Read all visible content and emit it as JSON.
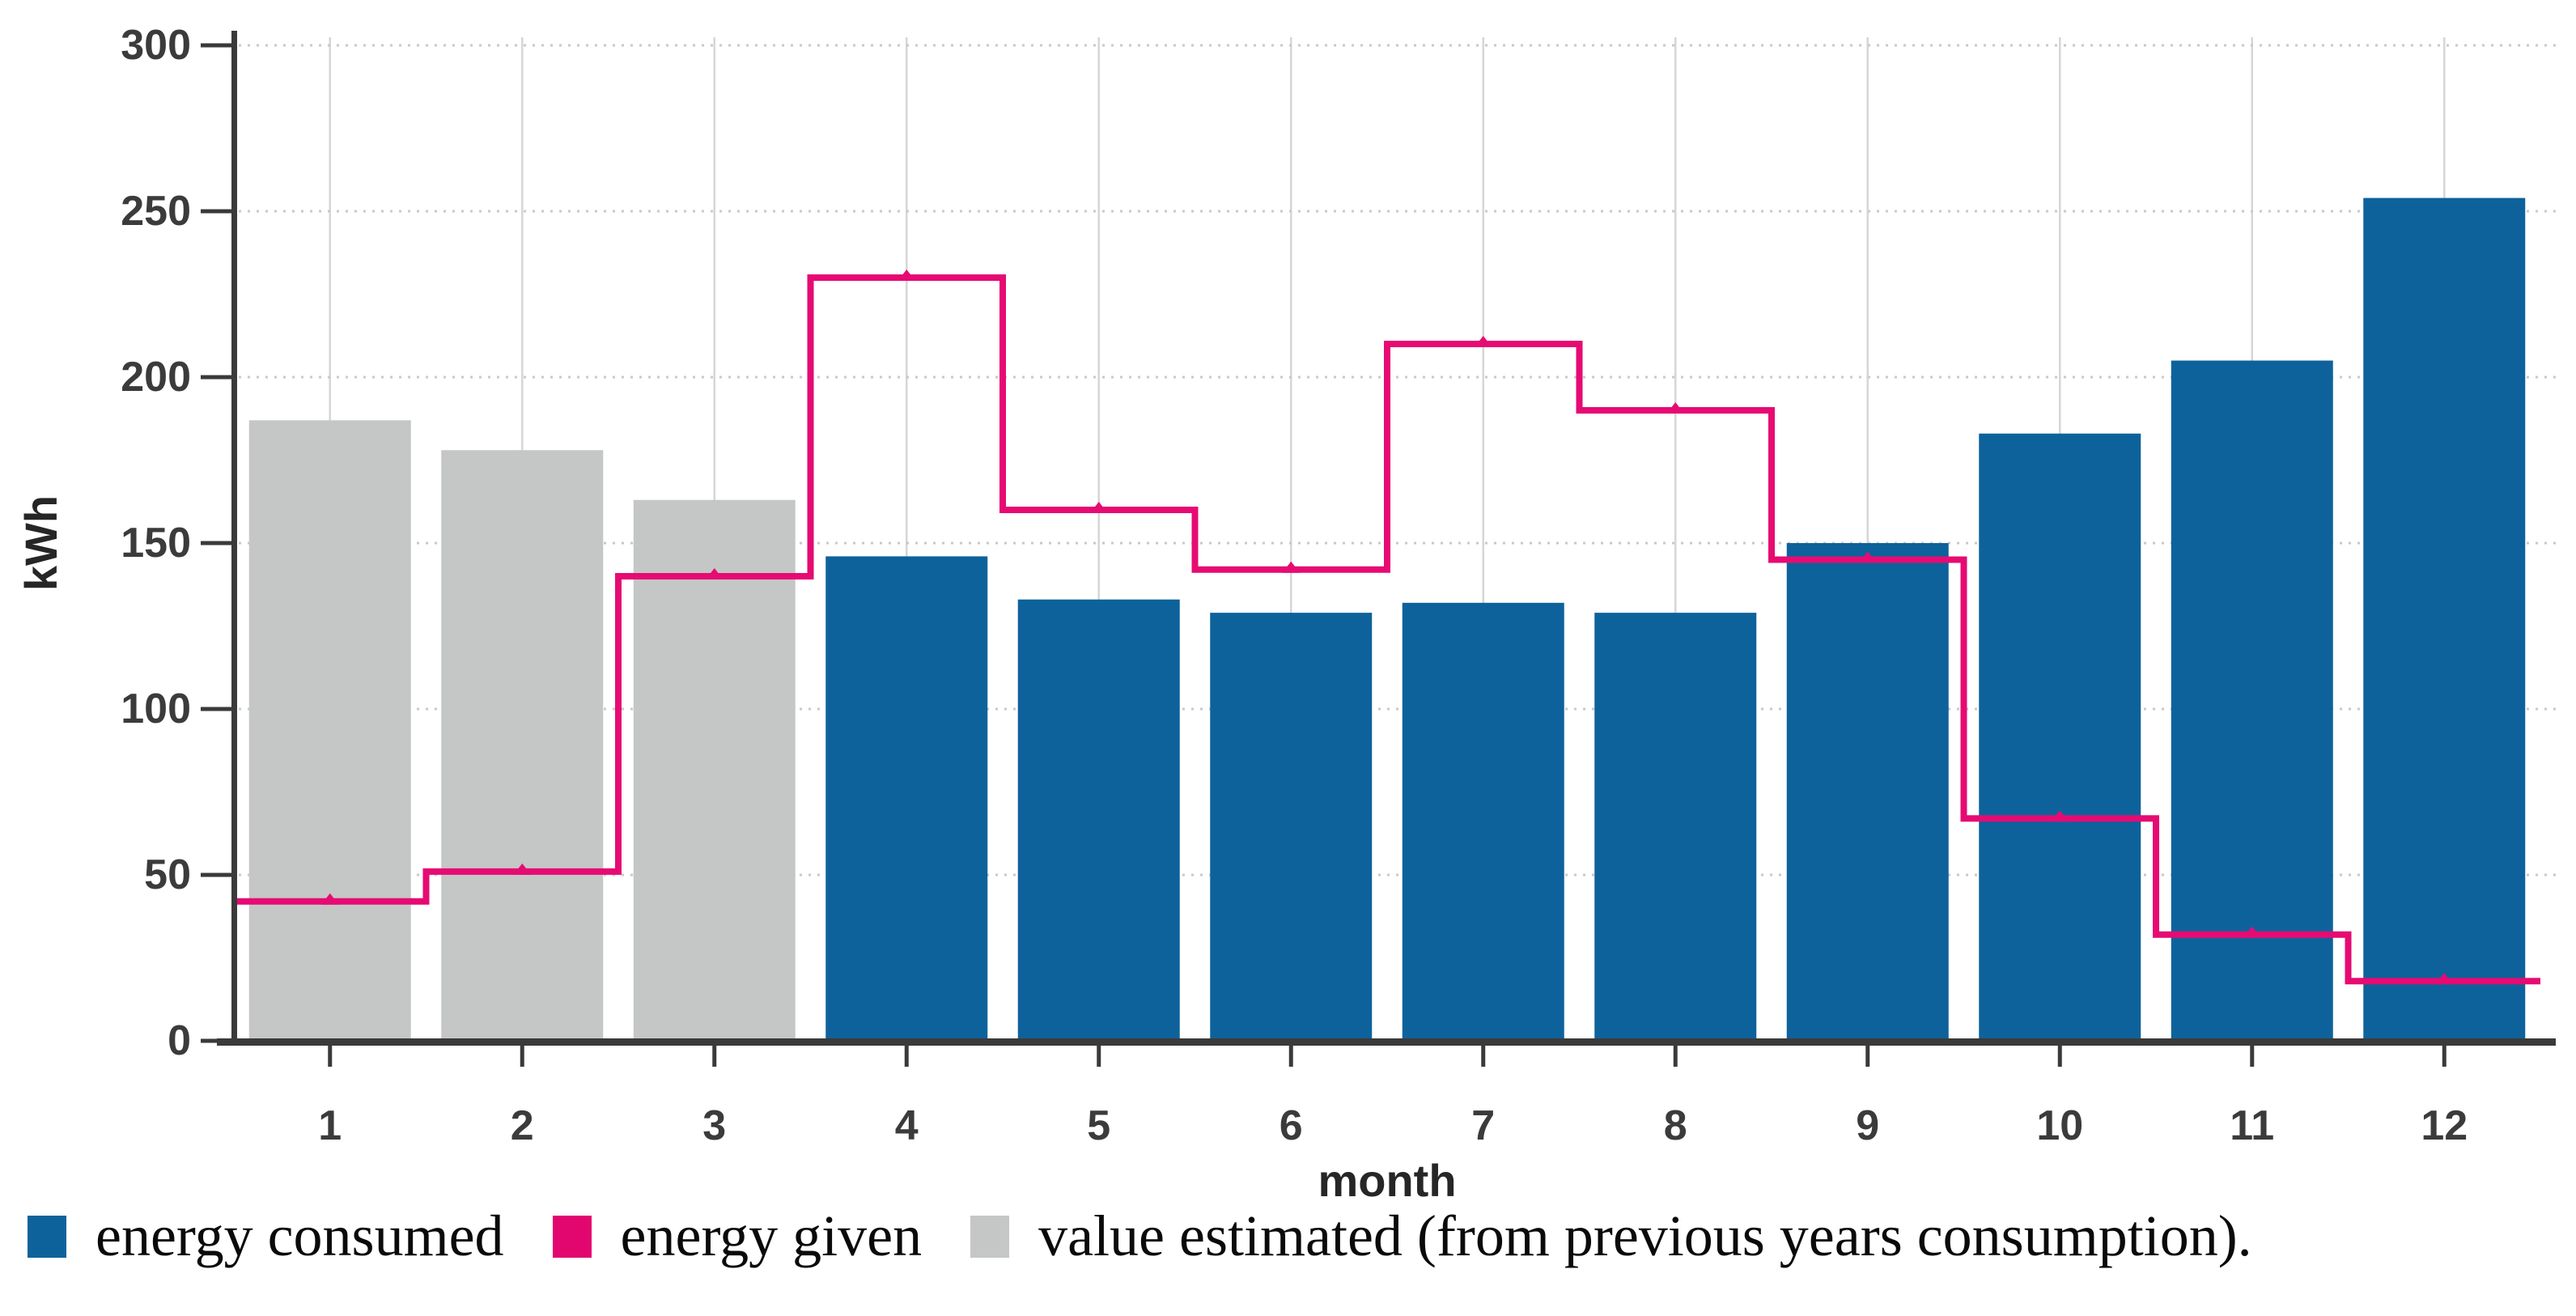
{
  "chart_data": {
    "type": "bar",
    "title": "",
    "xlabel": "month",
    "ylabel": "kWh",
    "ylim": [
      0,
      300
    ],
    "yticks": [
      0,
      50,
      100,
      150,
      200,
      250,
      300
    ],
    "categories": [
      "1",
      "2",
      "3",
      "4",
      "5",
      "6",
      "7",
      "8",
      "9",
      "10",
      "11",
      "12"
    ],
    "grid": {
      "vertical": "solid",
      "horizontal": "dotted"
    },
    "legend_position": "bottom-left",
    "series": [
      {
        "name": "energy consumed",
        "type": "bar",
        "color": "#0e629b",
        "values": [
          null,
          null,
          null,
          146,
          133,
          129,
          132,
          129,
          150,
          183,
          205,
          254
        ]
      },
      {
        "name": "value estimated (from previous years consumption).",
        "type": "bar",
        "color": "#c5c6c6",
        "values": [
          187,
          178,
          163,
          null,
          null,
          null,
          null,
          null,
          null,
          null,
          null,
          null
        ]
      },
      {
        "name": "energy given",
        "type": "step-line",
        "marker": "triangle-up",
        "color": "#e60b73",
        "values": [
          42,
          51,
          140,
          230,
          160,
          142,
          210,
          190,
          145,
          67,
          32,
          18
        ]
      }
    ]
  },
  "axes": {
    "x_tick_labels": [
      "1",
      "2",
      "3",
      "4",
      "5",
      "6",
      "7",
      "8",
      "9",
      "10",
      "11",
      "12"
    ],
    "y_tick_labels": [
      "0",
      "50",
      "100",
      "150",
      "200",
      "250",
      "300"
    ],
    "x_label": "month",
    "y_label": "kWh"
  },
  "legend": {
    "items": [
      {
        "label": "energy consumed",
        "color": "#0e629b"
      },
      {
        "label": "energy given",
        "color": "#e2066f"
      },
      {
        "label": "value estimated (from previous years consumption).",
        "color": "#c5c6c6"
      }
    ]
  },
  "colors": {
    "bar_blue": "#0e629b",
    "bar_gray": "#c5c6c6",
    "line_pink": "#e60b73",
    "axis": "#3a3a3a",
    "gridline_vertical": "#d6d6d6",
    "gridline_horizontal": "#c9c9c9",
    "background": "#ffffff"
  }
}
